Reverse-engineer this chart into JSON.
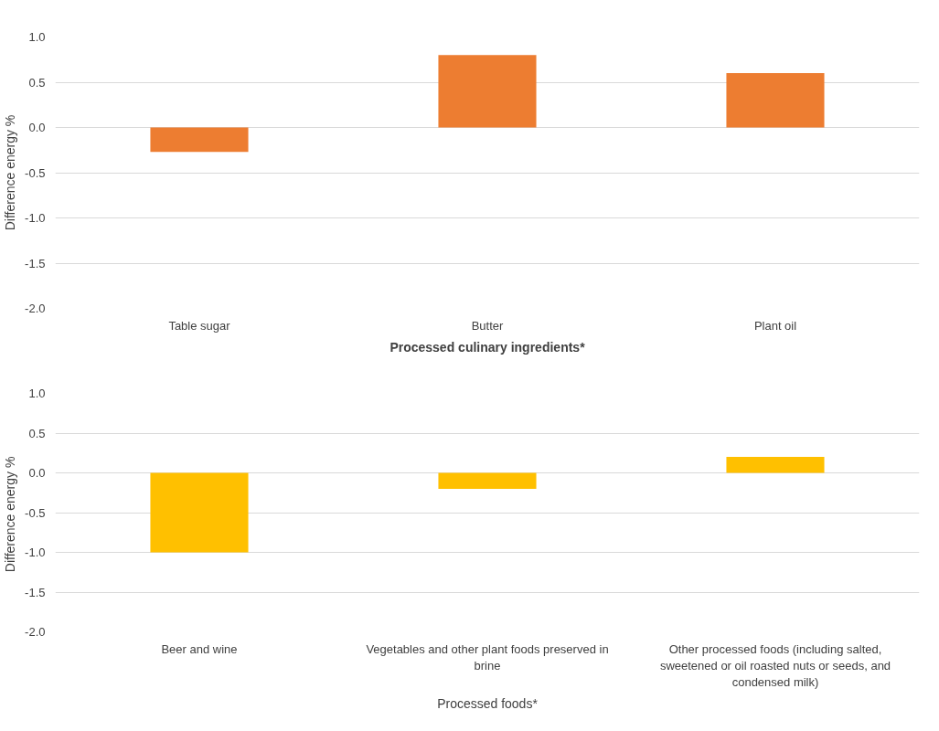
{
  "chart_data": [
    {
      "type": "bar",
      "xlabel": "Processed culinary ingredients*",
      "ylabel": "Difference energy %",
      "categories": [
        "Table sugar",
        "Butter",
        "Plant oil"
      ],
      "values": [
        -0.27,
        0.8,
        0.6
      ],
      "color": "#ed7d31",
      "ylim": [
        -2.0,
        1.0
      ],
      "yticks": [
        {
          "value": -2,
          "label": "-2.0"
        },
        {
          "value": -1.5,
          "label": "-1.5"
        },
        {
          "value": -1,
          "label": "-1.0"
        },
        {
          "value": -0.5,
          "label": "-0.5"
        },
        {
          "value": 0,
          "label": "0.0"
        },
        {
          "value": 0.5,
          "label": "0.5"
        },
        {
          "value": 1,
          "label": "1.0"
        }
      ],
      "grid": "y"
    },
    {
      "type": "bar",
      "xlabel": "Processed foods*",
      "ylabel": "Difference energy  %",
      "categories": [
        "Beer and wine",
        "Vegetables and other plant foods preserved in brine",
        "Other processed foods (including salted, sweetened or oil roasted nuts or seeds, and condensed milk)"
      ],
      "values": [
        -1.0,
        -0.2,
        0.2
      ],
      "color": "#ffc000",
      "ylim": [
        -2.0,
        1.0
      ],
      "yticks": [
        {
          "value": -2,
          "label": "-2.0"
        },
        {
          "value": -1.5,
          "label": "-1.5"
        },
        {
          "value": -1,
          "label": "-1.0"
        },
        {
          "value": -0.5,
          "label": "-0.5"
        },
        {
          "value": 0,
          "label": "0.0"
        },
        {
          "value": 0.5,
          "label": "0.5"
        },
        {
          "value": 1,
          "label": "1.0"
        }
      ],
      "grid": "y"
    }
  ]
}
